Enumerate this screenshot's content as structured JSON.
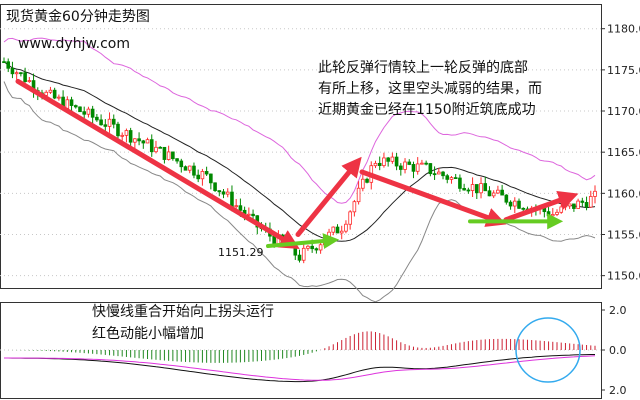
{
  "chart_data": [
    {
      "type": "candlestick",
      "title": "现货黄金60分钟走势图",
      "source": "www.dyhjw.com",
      "y_ticks": [
        "1180.0",
        "1175.0",
        "1170.0",
        "1165.0",
        "1160.0",
        "1155.0",
        "1150.0"
      ],
      "ylim": [
        1148.5,
        1183
      ],
      "low_label": "1151.29",
      "annotation_lines": [
        "此轮反弹行情较上一轮反弹的底部",
        "有所上移，这里空头减弱的结果，而",
        "近期黄金已经在1150附近筑底成功"
      ],
      "colors": {
        "up": "#ff2a2a",
        "down": "#008800",
        "arrow_red": "#ee3344",
        "arrow_green": "#66cc22",
        "bands": "#dd66dd"
      }
    },
    {
      "type": "macd",
      "y_ticks": [
        "2.0",
        "0.0",
        "2.0"
      ],
      "ylim": [
        -2.4,
        2.4
      ],
      "annotation_lines": [
        "快慢线重合开始向上拐头运行",
        "红色动能小幅增加"
      ],
      "colors": {
        "hist_pos": "#cc2233",
        "hist_neg": "#228822",
        "fast": "#111111",
        "slow": "#dd33dd",
        "circle": "#33aaee"
      }
    }
  ]
}
